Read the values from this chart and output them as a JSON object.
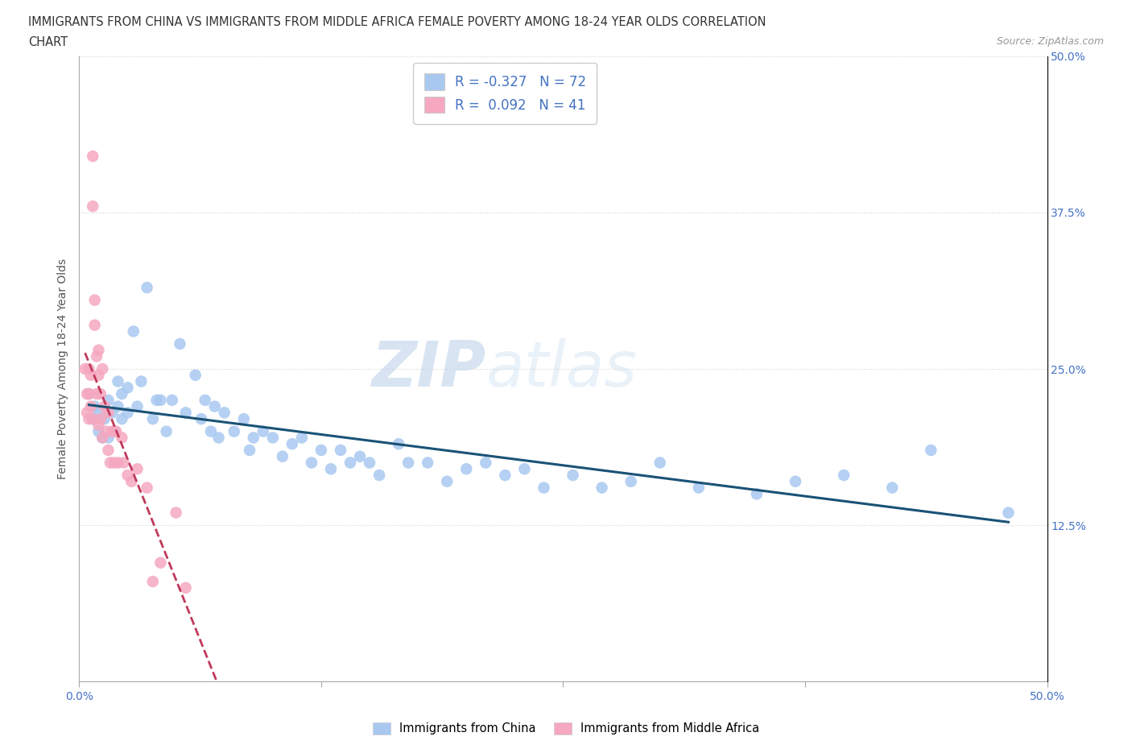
{
  "title_line1": "IMMIGRANTS FROM CHINA VS IMMIGRANTS FROM MIDDLE AFRICA FEMALE POVERTY AMONG 18-24 YEAR OLDS CORRELATION",
  "title_line2": "CHART",
  "source_text": "Source: ZipAtlas.com",
  "ylabel": "Female Poverty Among 18-24 Year Olds",
  "xlim": [
    0.0,
    0.5
  ],
  "ylim": [
    0.0,
    0.5
  ],
  "R_china": -0.327,
  "N_china": 72,
  "R_africa": 0.092,
  "N_africa": 41,
  "china_color": "#a8c8f0",
  "africa_color": "#f5a8c0",
  "china_line_color": "#1a5276",
  "africa_line_color": "#c0395a",
  "grid_color": "#cccccc",
  "china_x": [
    0.005,
    0.007,
    0.008,
    0.01,
    0.01,
    0.012,
    0.013,
    0.015,
    0.015,
    0.017,
    0.018,
    0.02,
    0.02,
    0.022,
    0.022,
    0.025,
    0.025,
    0.028,
    0.03,
    0.032,
    0.035,
    0.038,
    0.04,
    0.042,
    0.045,
    0.048,
    0.052,
    0.055,
    0.06,
    0.063,
    0.065,
    0.068,
    0.07,
    0.072,
    0.075,
    0.08,
    0.085,
    0.088,
    0.09,
    0.095,
    0.1,
    0.105,
    0.11,
    0.115,
    0.12,
    0.125,
    0.13,
    0.135,
    0.14,
    0.145,
    0.15,
    0.155,
    0.165,
    0.17,
    0.18,
    0.19,
    0.2,
    0.21,
    0.22,
    0.23,
    0.24,
    0.255,
    0.27,
    0.285,
    0.3,
    0.32,
    0.35,
    0.37,
    0.395,
    0.42,
    0.44,
    0.48
  ],
  "china_y": [
    0.23,
    0.21,
    0.22,
    0.2,
    0.215,
    0.195,
    0.21,
    0.225,
    0.195,
    0.215,
    0.2,
    0.24,
    0.22,
    0.23,
    0.21,
    0.235,
    0.215,
    0.28,
    0.22,
    0.24,
    0.315,
    0.21,
    0.225,
    0.225,
    0.2,
    0.225,
    0.27,
    0.215,
    0.245,
    0.21,
    0.225,
    0.2,
    0.22,
    0.195,
    0.215,
    0.2,
    0.21,
    0.185,
    0.195,
    0.2,
    0.195,
    0.18,
    0.19,
    0.195,
    0.175,
    0.185,
    0.17,
    0.185,
    0.175,
    0.18,
    0.175,
    0.165,
    0.19,
    0.175,
    0.175,
    0.16,
    0.17,
    0.175,
    0.165,
    0.17,
    0.155,
    0.165,
    0.155,
    0.16,
    0.175,
    0.155,
    0.15,
    0.16,
    0.165,
    0.155,
    0.185,
    0.135
  ],
  "africa_x": [
    0.003,
    0.004,
    0.004,
    0.005,
    0.005,
    0.005,
    0.006,
    0.006,
    0.007,
    0.007,
    0.007,
    0.008,
    0.008,
    0.009,
    0.009,
    0.01,
    0.01,
    0.01,
    0.011,
    0.011,
    0.012,
    0.012,
    0.013,
    0.014,
    0.015,
    0.015,
    0.016,
    0.017,
    0.018,
    0.019,
    0.02,
    0.022,
    0.023,
    0.025,
    0.027,
    0.03,
    0.035,
    0.038,
    0.042,
    0.05,
    0.055
  ],
  "africa_y": [
    0.25,
    0.23,
    0.215,
    0.25,
    0.23,
    0.21,
    0.245,
    0.22,
    0.42,
    0.38,
    0.21,
    0.305,
    0.285,
    0.26,
    0.23,
    0.265,
    0.245,
    0.205,
    0.23,
    0.21,
    0.25,
    0.195,
    0.22,
    0.2,
    0.215,
    0.185,
    0.175,
    0.2,
    0.175,
    0.2,
    0.175,
    0.195,
    0.175,
    0.165,
    0.16,
    0.17,
    0.155,
    0.08,
    0.095,
    0.135,
    0.075
  ]
}
